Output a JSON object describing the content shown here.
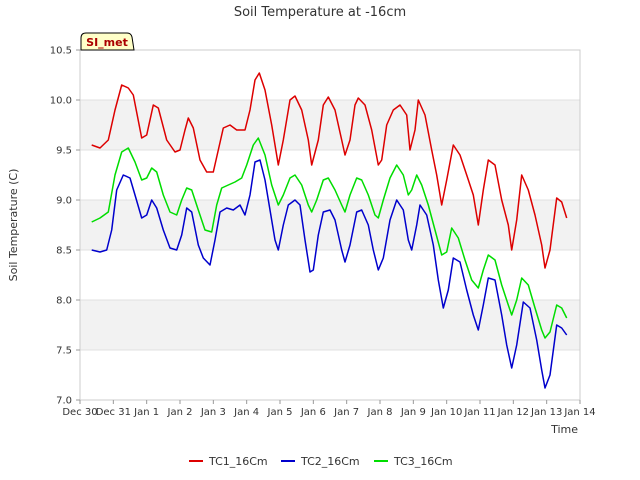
{
  "chart_data": {
    "type": "line",
    "title": "Soil Temperature at -16cm",
    "xlabel": "Time",
    "ylabel": "Soil Temperature (C)",
    "badge": "SI_met",
    "ylim": [
      7.0,
      10.5
    ],
    "xlim": [
      0,
      15
    ],
    "grid": "horizontal bands",
    "legend_position": "bottom",
    "x_tick_values": [
      0,
      1,
      2,
      3,
      4,
      5,
      6,
      7,
      8,
      9,
      10,
      11,
      12,
      13,
      14,
      15
    ],
    "x_tick_labels": [
      "Dec 30",
      "Dec 31",
      "Jan 1",
      "Jan 2",
      "Jan 3",
      "Jan 4",
      "Jan 5",
      "Jan 6",
      "Jan 7",
      "Jan 8",
      "Jan 9",
      "Jan 10",
      "Jan 11",
      "Jan 12",
      "Jan 13",
      "Jan 14"
    ],
    "y_ticks": [
      7.0,
      7.5,
      8.0,
      8.5,
      9.0,
      9.5,
      10.0,
      10.5
    ],
    "y_tick_labels": [
      "7.0",
      "7.5",
      "8.0",
      "8.5",
      "9.0",
      "9.5",
      "10.0",
      "10.5"
    ],
    "series": [
      {
        "name": "TC1_16Cm",
        "color": "#dd0000",
        "points": [
          [
            0.35,
            9.55
          ],
          [
            0.6,
            9.52
          ],
          [
            0.85,
            9.6
          ],
          [
            1.05,
            9.9
          ],
          [
            1.25,
            10.15
          ],
          [
            1.45,
            10.12
          ],
          [
            1.6,
            10.05
          ],
          [
            1.85,
            9.62
          ],
          [
            2.0,
            9.65
          ],
          [
            2.2,
            9.95
          ],
          [
            2.35,
            9.92
          ],
          [
            2.6,
            9.6
          ],
          [
            2.85,
            9.48
          ],
          [
            3.0,
            9.5
          ],
          [
            3.15,
            9.7
          ],
          [
            3.25,
            9.82
          ],
          [
            3.4,
            9.72
          ],
          [
            3.6,
            9.4
          ],
          [
            3.8,
            9.28
          ],
          [
            4.0,
            9.28
          ],
          [
            4.15,
            9.5
          ],
          [
            4.3,
            9.72
          ],
          [
            4.5,
            9.75
          ],
          [
            4.7,
            9.7
          ],
          [
            4.95,
            9.7
          ],
          [
            5.1,
            9.9
          ],
          [
            5.25,
            10.2
          ],
          [
            5.38,
            10.27
          ],
          [
            5.55,
            10.1
          ],
          [
            5.75,
            9.75
          ],
          [
            5.95,
            9.35
          ],
          [
            6.1,
            9.6
          ],
          [
            6.3,
            10.0
          ],
          [
            6.45,
            10.04
          ],
          [
            6.65,
            9.9
          ],
          [
            6.85,
            9.6
          ],
          [
            6.95,
            9.35
          ],
          [
            7.15,
            9.6
          ],
          [
            7.3,
            9.95
          ],
          [
            7.45,
            10.03
          ],
          [
            7.65,
            9.9
          ],
          [
            7.85,
            9.6
          ],
          [
            7.95,
            9.45
          ],
          [
            8.1,
            9.6
          ],
          [
            8.25,
            9.95
          ],
          [
            8.35,
            10.02
          ],
          [
            8.55,
            9.95
          ],
          [
            8.75,
            9.7
          ],
          [
            8.95,
            9.35
          ],
          [
            9.05,
            9.4
          ],
          [
            9.2,
            9.75
          ],
          [
            9.4,
            9.9
          ],
          [
            9.6,
            9.95
          ],
          [
            9.8,
            9.85
          ],
          [
            9.9,
            9.5
          ],
          [
            10.05,
            9.7
          ],
          [
            10.15,
            10.0
          ],
          [
            10.35,
            9.85
          ],
          [
            10.55,
            9.5
          ],
          [
            10.7,
            9.25
          ],
          [
            10.85,
            8.95
          ],
          [
            11.0,
            9.2
          ],
          [
            11.2,
            9.55
          ],
          [
            11.4,
            9.45
          ],
          [
            11.6,
            9.25
          ],
          [
            11.8,
            9.05
          ],
          [
            11.95,
            8.75
          ],
          [
            12.1,
            9.1
          ],
          [
            12.25,
            9.4
          ],
          [
            12.45,
            9.35
          ],
          [
            12.65,
            9.0
          ],
          [
            12.85,
            8.75
          ],
          [
            12.95,
            8.5
          ],
          [
            13.1,
            8.8
          ],
          [
            13.25,
            9.25
          ],
          [
            13.45,
            9.1
          ],
          [
            13.65,
            8.85
          ],
          [
            13.85,
            8.55
          ],
          [
            13.95,
            8.32
          ],
          [
            14.1,
            8.5
          ],
          [
            14.3,
            9.02
          ],
          [
            14.45,
            8.98
          ],
          [
            14.6,
            8.82
          ]
        ]
      },
      {
        "name": "TC2_16Cm",
        "color": "#0000cc",
        "points": [
          [
            0.35,
            8.5
          ],
          [
            0.6,
            8.48
          ],
          [
            0.8,
            8.5
          ],
          [
            0.95,
            8.7
          ],
          [
            1.1,
            9.1
          ],
          [
            1.3,
            9.25
          ],
          [
            1.5,
            9.22
          ],
          [
            1.65,
            9.05
          ],
          [
            1.85,
            8.82
          ],
          [
            2.0,
            8.85
          ],
          [
            2.15,
            9.0
          ],
          [
            2.3,
            8.92
          ],
          [
            2.5,
            8.7
          ],
          [
            2.7,
            8.52
          ],
          [
            2.9,
            8.5
          ],
          [
            3.05,
            8.65
          ],
          [
            3.2,
            8.92
          ],
          [
            3.35,
            8.88
          ],
          [
            3.55,
            8.55
          ],
          [
            3.7,
            8.42
          ],
          [
            3.9,
            8.35
          ],
          [
            4.05,
            8.6
          ],
          [
            4.2,
            8.88
          ],
          [
            4.4,
            8.92
          ],
          [
            4.6,
            8.9
          ],
          [
            4.8,
            8.95
          ],
          [
            4.95,
            8.85
          ],
          [
            5.1,
            9.05
          ],
          [
            5.25,
            9.38
          ],
          [
            5.4,
            9.4
          ],
          [
            5.55,
            9.2
          ],
          [
            5.7,
            8.9
          ],
          [
            5.85,
            8.6
          ],
          [
            5.95,
            8.5
          ],
          [
            6.1,
            8.75
          ],
          [
            6.25,
            8.95
          ],
          [
            6.45,
            9.0
          ],
          [
            6.6,
            8.95
          ],
          [
            6.75,
            8.6
          ],
          [
            6.9,
            8.28
          ],
          [
            7.0,
            8.3
          ],
          [
            7.15,
            8.65
          ],
          [
            7.3,
            8.88
          ],
          [
            7.5,
            8.9
          ],
          [
            7.65,
            8.8
          ],
          [
            7.85,
            8.5
          ],
          [
            7.95,
            8.38
          ],
          [
            8.1,
            8.55
          ],
          [
            8.3,
            8.88
          ],
          [
            8.45,
            8.9
          ],
          [
            8.65,
            8.75
          ],
          [
            8.8,
            8.5
          ],
          [
            8.95,
            8.3
          ],
          [
            9.1,
            8.42
          ],
          [
            9.3,
            8.8
          ],
          [
            9.5,
            9.0
          ],
          [
            9.7,
            8.9
          ],
          [
            9.85,
            8.6
          ],
          [
            9.95,
            8.5
          ],
          [
            10.1,
            8.75
          ],
          [
            10.2,
            8.95
          ],
          [
            10.4,
            8.85
          ],
          [
            10.6,
            8.55
          ],
          [
            10.75,
            8.2
          ],
          [
            10.9,
            7.92
          ],
          [
            11.05,
            8.1
          ],
          [
            11.2,
            8.42
          ],
          [
            11.4,
            8.38
          ],
          [
            11.6,
            8.1
          ],
          [
            11.8,
            7.85
          ],
          [
            11.95,
            7.7
          ],
          [
            12.1,
            7.95
          ],
          [
            12.25,
            8.22
          ],
          [
            12.45,
            8.2
          ],
          [
            12.65,
            7.85
          ],
          [
            12.8,
            7.55
          ],
          [
            12.95,
            7.32
          ],
          [
            13.1,
            7.55
          ],
          [
            13.3,
            7.98
          ],
          [
            13.5,
            7.92
          ],
          [
            13.7,
            7.6
          ],
          [
            13.85,
            7.3
          ],
          [
            13.95,
            7.12
          ],
          [
            14.1,
            7.25
          ],
          [
            14.3,
            7.75
          ],
          [
            14.45,
            7.72
          ],
          [
            14.6,
            7.65
          ]
        ]
      },
      {
        "name": "TC3_16Cm",
        "color": "#00dd00",
        "points": [
          [
            0.35,
            8.78
          ],
          [
            0.6,
            8.82
          ],
          [
            0.85,
            8.88
          ],
          [
            1.05,
            9.25
          ],
          [
            1.25,
            9.48
          ],
          [
            1.45,
            9.52
          ],
          [
            1.65,
            9.38
          ],
          [
            1.85,
            9.2
          ],
          [
            2.0,
            9.22
          ],
          [
            2.15,
            9.32
          ],
          [
            2.3,
            9.28
          ],
          [
            2.5,
            9.05
          ],
          [
            2.7,
            8.88
          ],
          [
            2.9,
            8.85
          ],
          [
            3.05,
            9.0
          ],
          [
            3.2,
            9.12
          ],
          [
            3.35,
            9.1
          ],
          [
            3.55,
            8.9
          ],
          [
            3.75,
            8.7
          ],
          [
            3.95,
            8.68
          ],
          [
            4.1,
            8.95
          ],
          [
            4.25,
            9.12
          ],
          [
            4.45,
            9.15
          ],
          [
            4.65,
            9.18
          ],
          [
            4.85,
            9.22
          ],
          [
            5.0,
            9.35
          ],
          [
            5.2,
            9.55
          ],
          [
            5.35,
            9.62
          ],
          [
            5.55,
            9.45
          ],
          [
            5.75,
            9.15
          ],
          [
            5.95,
            8.95
          ],
          [
            6.1,
            9.05
          ],
          [
            6.3,
            9.22
          ],
          [
            6.45,
            9.25
          ],
          [
            6.65,
            9.15
          ],
          [
            6.85,
            8.95
          ],
          [
            6.95,
            8.88
          ],
          [
            7.1,
            9.0
          ],
          [
            7.3,
            9.2
          ],
          [
            7.45,
            9.22
          ],
          [
            7.65,
            9.1
          ],
          [
            7.85,
            8.95
          ],
          [
            7.95,
            8.88
          ],
          [
            8.1,
            9.05
          ],
          [
            8.3,
            9.22
          ],
          [
            8.45,
            9.2
          ],
          [
            8.65,
            9.05
          ],
          [
            8.85,
            8.85
          ],
          [
            8.95,
            8.82
          ],
          [
            9.1,
            9.0
          ],
          [
            9.3,
            9.22
          ],
          [
            9.5,
            9.35
          ],
          [
            9.7,
            9.25
          ],
          [
            9.85,
            9.05
          ],
          [
            9.95,
            9.1
          ],
          [
            10.1,
            9.25
          ],
          [
            10.25,
            9.15
          ],
          [
            10.45,
            8.95
          ],
          [
            10.65,
            8.7
          ],
          [
            10.85,
            8.45
          ],
          [
            11.0,
            8.48
          ],
          [
            11.15,
            8.72
          ],
          [
            11.35,
            8.62
          ],
          [
            11.55,
            8.4
          ],
          [
            11.75,
            8.2
          ],
          [
            11.95,
            8.12
          ],
          [
            12.1,
            8.3
          ],
          [
            12.25,
            8.45
          ],
          [
            12.45,
            8.4
          ],
          [
            12.65,
            8.15
          ],
          [
            12.85,
            7.95
          ],
          [
            12.95,
            7.85
          ],
          [
            13.1,
            8.0
          ],
          [
            13.25,
            8.22
          ],
          [
            13.45,
            8.15
          ],
          [
            13.65,
            7.92
          ],
          [
            13.85,
            7.7
          ],
          [
            13.95,
            7.62
          ],
          [
            14.1,
            7.68
          ],
          [
            14.3,
            7.95
          ],
          [
            14.45,
            7.92
          ],
          [
            14.6,
            7.82
          ]
        ]
      }
    ]
  }
}
